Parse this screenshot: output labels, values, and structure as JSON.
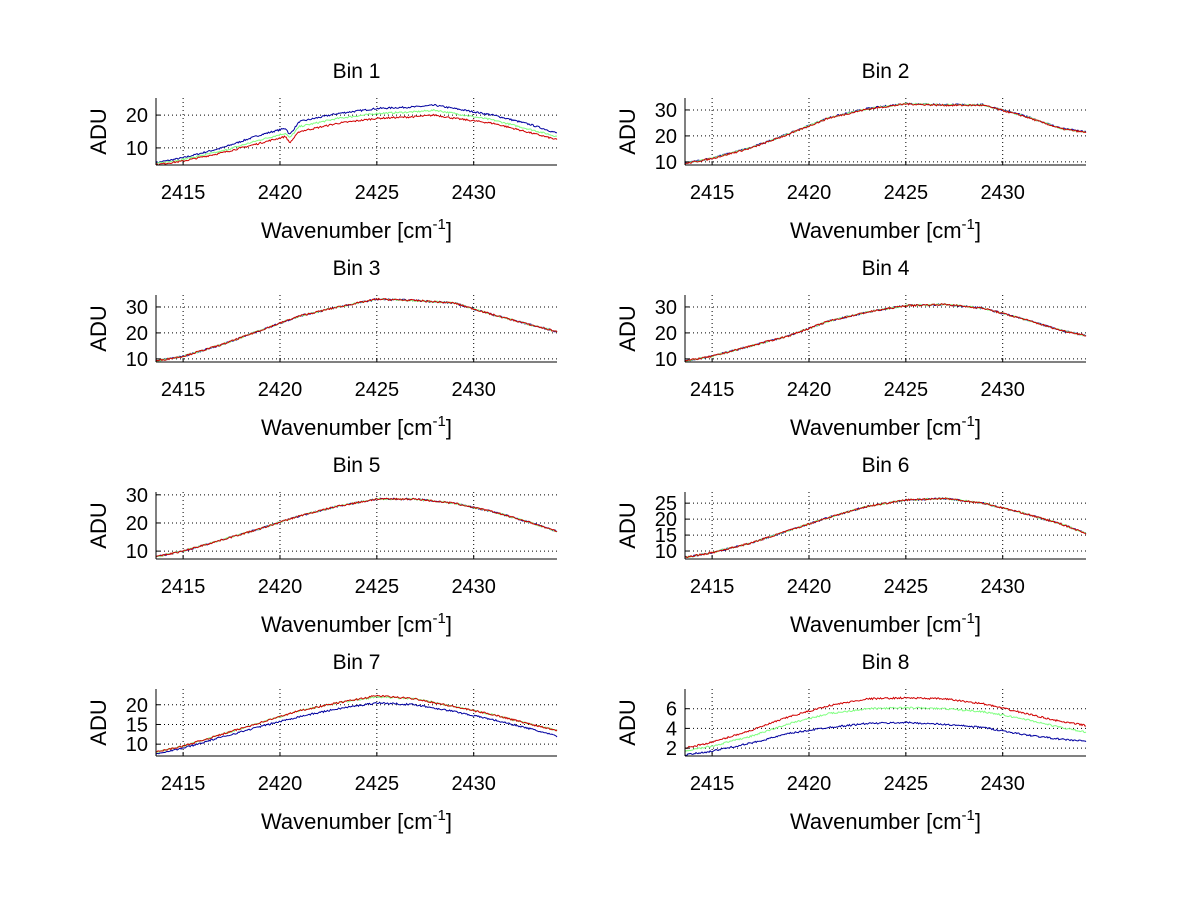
{
  "chart_data": [
    {
      "type": "line",
      "title": "Bin 1",
      "xlabel": "Wavenumber [cm",
      "xlabel_sup": "-1",
      "xlabel_end": "]",
      "ylabel": "ADU",
      "xlim": [
        2413.6,
        2434.3
      ],
      "ylim": [
        4.8,
        25.2
      ],
      "xticks": [
        2415,
        2420,
        2425,
        2430
      ],
      "yticks": [
        10,
        20
      ],
      "grid": true,
      "x": [
        2413.6,
        2415,
        2417,
        2419,
        2420.3,
        2420.5,
        2421,
        2423,
        2425,
        2427,
        2428,
        2429,
        2431,
        2433,
        2434.3
      ],
      "series": [
        {
          "name": "blue",
          "color": "#0000a0",
          "values": [
            5.5,
            7,
            10,
            14,
            16,
            14,
            18,
            20.5,
            22,
            22.5,
            23,
            22,
            20,
            17,
            14.5
          ]
        },
        {
          "name": "green",
          "color": "#80ff80",
          "values": [
            5.2,
            6.5,
            9,
            12.5,
            14.5,
            13,
            16.5,
            19,
            20.5,
            21,
            21.5,
            20.5,
            18.5,
            15.5,
            13.5
          ]
        },
        {
          "name": "red",
          "color": "#d00000",
          "values": [
            4.9,
            6,
            8.5,
            11.5,
            13.5,
            11.5,
            15,
            17.5,
            19,
            19.5,
            20,
            19,
            17.5,
            14.5,
            12.5
          ]
        }
      ]
    },
    {
      "type": "line",
      "title": "Bin 2",
      "xlabel": "Wavenumber [cm",
      "xlabel_sup": "-1",
      "xlabel_end": "]",
      "ylabel": "ADU",
      "xlim": [
        2413.6,
        2434.3
      ],
      "ylim": [
        8.8,
        34.6
      ],
      "xticks": [
        2415,
        2420,
        2425,
        2430
      ],
      "yticks": [
        10,
        20,
        30
      ],
      "grid": true,
      "x": [
        2413.6,
        2415,
        2417,
        2419,
        2421,
        2423,
        2425,
        2427,
        2429,
        2431,
        2433,
        2434.3
      ],
      "series": [
        {
          "name": "blue",
          "color": "#0000a0",
          "values": [
            9.5,
            11.5,
            15.5,
            21,
            27,
            30.5,
            32.5,
            32,
            32,
            28,
            23,
            21.5
          ]
        },
        {
          "name": "green",
          "color": "#80ff80",
          "values": [
            9.4,
            11.4,
            15.4,
            20.9,
            26.9,
            30.4,
            32.4,
            31.9,
            31.9,
            27.9,
            22.9,
            21.4
          ]
        },
        {
          "name": "red",
          "color": "#d00000",
          "values": [
            9.3,
            11.3,
            15.3,
            20.8,
            26.8,
            30.3,
            32.3,
            31.8,
            31.8,
            27.8,
            22.8,
            21.3
          ]
        }
      ]
    },
    {
      "type": "line",
      "title": "Bin 3",
      "xlabel": "Wavenumber [cm",
      "xlabel_sup": "-1",
      "xlabel_end": "]",
      "ylabel": "ADU",
      "xlim": [
        2413.6,
        2434.3
      ],
      "ylim": [
        8.8,
        34.6
      ],
      "xticks": [
        2415,
        2420,
        2425,
        2430
      ],
      "yticks": [
        10,
        20,
        30
      ],
      "grid": true,
      "x": [
        2413.6,
        2415,
        2417,
        2419,
        2421,
        2423,
        2425,
        2427,
        2429,
        2431,
        2433,
        2434.3
      ],
      "series": [
        {
          "name": "blue",
          "color": "#0000a0",
          "values": [
            9.2,
            11,
            15.5,
            21,
            26.5,
            30,
            33,
            32.5,
            31.5,
            27,
            23,
            20.5
          ]
        },
        {
          "name": "green",
          "color": "#80ff80",
          "values": [
            9.2,
            11,
            15.5,
            21,
            26.5,
            30,
            33,
            32.5,
            31.5,
            27,
            23,
            20.5
          ]
        },
        {
          "name": "red",
          "color": "#d00000",
          "values": [
            9.2,
            11,
            15.5,
            21,
            26.5,
            30,
            33,
            32.5,
            31.5,
            27,
            23,
            20.5
          ]
        }
      ]
    },
    {
      "type": "line",
      "title": "Bin 4",
      "xlabel": "Wavenumber [cm",
      "xlabel_sup": "-1",
      "xlabel_end": "]",
      "ylabel": "ADU",
      "xlim": [
        2413.6,
        2434.3
      ],
      "ylim": [
        8.8,
        34.6
      ],
      "xticks": [
        2415,
        2420,
        2425,
        2430
      ],
      "yticks": [
        10,
        20,
        30
      ],
      "grid": true,
      "x": [
        2413.6,
        2415,
        2417,
        2419,
        2421,
        2423,
        2425,
        2427,
        2429,
        2431,
        2433,
        2434.3
      ],
      "series": [
        {
          "name": "blue",
          "color": "#0000a0",
          "values": [
            9.2,
            11,
            15,
            19,
            24.5,
            28,
            30.5,
            31,
            29.5,
            25.5,
            21,
            19
          ]
        },
        {
          "name": "green",
          "color": "#80ff80",
          "values": [
            9.2,
            11,
            15,
            19,
            24.5,
            28,
            30.5,
            31,
            29.5,
            25.5,
            21,
            19
          ]
        },
        {
          "name": "red",
          "color": "#d00000",
          "values": [
            9.2,
            11,
            15,
            19,
            24.5,
            28,
            30.5,
            31,
            29.5,
            25.5,
            21,
            19
          ]
        }
      ]
    },
    {
      "type": "line",
      "title": "Bin 5",
      "xlabel": "Wavenumber [cm",
      "xlabel_sup": "-1",
      "xlabel_end": "]",
      "ylabel": "ADU",
      "xlim": [
        2413.6,
        2434.3
      ],
      "ylim": [
        7.2,
        31
      ],
      "xticks": [
        2415,
        2420,
        2425,
        2430
      ],
      "yticks": [
        10,
        20,
        30
      ],
      "grid": true,
      "x": [
        2413.6,
        2415,
        2417,
        2419,
        2421,
        2423,
        2425,
        2427,
        2429,
        2431,
        2433,
        2434.3
      ],
      "series": [
        {
          "name": "blue",
          "color": "#0000a0",
          "values": [
            8,
            10,
            14,
            18,
            22.5,
            26,
            28.5,
            28.5,
            27,
            24,
            20,
            17
          ]
        },
        {
          "name": "green",
          "color": "#80ff80",
          "values": [
            8,
            10,
            14,
            18,
            22.5,
            26,
            28.5,
            28.5,
            27,
            24,
            20,
            17
          ]
        },
        {
          "name": "red",
          "color": "#d00000",
          "values": [
            8,
            10,
            14,
            18,
            22.5,
            26,
            28.5,
            28.5,
            27,
            24,
            20,
            17
          ]
        }
      ]
    },
    {
      "type": "line",
      "title": "Bin 6",
      "xlabel": "Wavenumber [cm",
      "xlabel_sup": "-1",
      "xlabel_end": "]",
      "ylabel": "ADU",
      "xlim": [
        2413.6,
        2434.3
      ],
      "ylim": [
        7.5,
        28.5
      ],
      "xticks": [
        2415,
        2420,
        2425,
        2430
      ],
      "yticks": [
        10,
        15,
        20,
        25
      ],
      "grid": true,
      "x": [
        2413.6,
        2415,
        2417,
        2419,
        2421,
        2423,
        2425,
        2427,
        2429,
        2431,
        2433,
        2434.3
      ],
      "series": [
        {
          "name": "blue",
          "color": "#0000a0",
          "values": [
            8,
            9.5,
            12.5,
            16.5,
            20.5,
            24,
            26,
            26.5,
            25,
            22,
            18.5,
            15.5
          ]
        },
        {
          "name": "green",
          "color": "#80ff80",
          "values": [
            8,
            9.5,
            12.5,
            16.5,
            20.5,
            24,
            26,
            26.5,
            25,
            22,
            18.5,
            15.5
          ]
        },
        {
          "name": "red",
          "color": "#d00000",
          "values": [
            8,
            9.5,
            12.5,
            16.5,
            20.5,
            24,
            26,
            26.5,
            25,
            22,
            18.5,
            15.5
          ]
        }
      ]
    },
    {
      "type": "line",
      "title": "Bin 7",
      "xlabel": "Wavenumber [cm",
      "xlabel_sup": "-1",
      "xlabel_end": "]",
      "ylabel": "ADU",
      "xlim": [
        2413.6,
        2434.3
      ],
      "ylim": [
        7,
        24
      ],
      "xticks": [
        2415,
        2420,
        2425,
        2430
      ],
      "yticks": [
        10,
        15,
        20
      ],
      "grid": true,
      "x": [
        2413.6,
        2415,
        2417,
        2419,
        2421,
        2423,
        2425,
        2427,
        2429,
        2431,
        2433,
        2434.3
      ],
      "series": [
        {
          "name": "green",
          "color": "#80ff80",
          "values": [
            8,
            9.5,
            12.5,
            15.5,
            18.5,
            20.5,
            22,
            21.5,
            19.5,
            17.5,
            15,
            13.5
          ]
        },
        {
          "name": "red",
          "color": "#d00000",
          "values": [
            8,
            9.5,
            12.5,
            15.5,
            18.5,
            20.5,
            22.3,
            21.5,
            19.5,
            17.5,
            15,
            13.5
          ]
        },
        {
          "name": "blue",
          "color": "#0000a0",
          "values": [
            7.6,
            9,
            11.8,
            14.5,
            17,
            19,
            20.5,
            20,
            18.3,
            16.2,
            13.8,
            12
          ]
        }
      ]
    },
    {
      "type": "line",
      "title": "Bin 8",
      "xlabel": "Wavenumber [cm",
      "xlabel_sup": "-1",
      "xlabel_end": "]",
      "ylabel": "ADU",
      "xlim": [
        2413.6,
        2434.3
      ],
      "ylim": [
        1.2,
        8
      ],
      "xticks": [
        2415,
        2420,
        2425,
        2430
      ],
      "yticks": [
        2,
        4,
        6
      ],
      "grid": true,
      "x": [
        2413.6,
        2415,
        2417,
        2419,
        2421,
        2423,
        2425,
        2427,
        2429,
        2431,
        2433,
        2434.3
      ],
      "series": [
        {
          "name": "red",
          "color": "#d00000",
          "values": [
            2,
            2.6,
            3.8,
            5.2,
            6.3,
            7,
            7.1,
            7,
            6.5,
            5.6,
            4.7,
            4.3
          ]
        },
        {
          "name": "green",
          "color": "#80ff80",
          "values": [
            1.7,
            2.2,
            3.2,
            4.5,
            5.5,
            6,
            6.1,
            6,
            5.7,
            5,
            4.1,
            3.6
          ]
        },
        {
          "name": "blue",
          "color": "#0000a0",
          "values": [
            1.3,
            1.7,
            2.5,
            3.5,
            4.1,
            4.5,
            4.6,
            4.4,
            4.1,
            3.4,
            2.9,
            2.7
          ]
        }
      ]
    }
  ]
}
